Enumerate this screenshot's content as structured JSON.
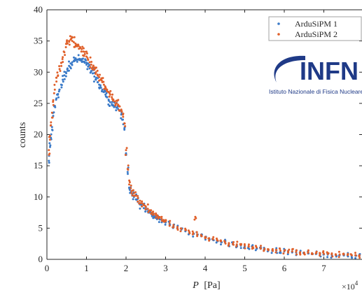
{
  "chart_data": {
    "type": "scatter",
    "title": "",
    "xlabel_italic": "P",
    "xlabel_unit": "[Pa]",
    "ylabel": "counts",
    "x_multiplier": "×10",
    "x_multiplier_exp": "4",
    "xlim": [
      0,
      8
    ],
    "ylim": [
      0,
      40
    ],
    "x_ticks": [
      "0",
      "1",
      "2",
      "3",
      "4",
      "5",
      "6",
      "7"
    ],
    "y_ticks": [
      "0",
      "5",
      "10",
      "15",
      "20",
      "25",
      "30",
      "35",
      "40"
    ],
    "legend_position": "top-right",
    "grid": false,
    "series": [
      {
        "name": "ArduSiPM 1",
        "color": "#3a7ac8",
        "points": [
          [
            0.05,
            15.8
          ],
          [
            0.08,
            18.0
          ],
          [
            0.1,
            19.5
          ],
          [
            0.13,
            21.2
          ],
          [
            0.16,
            23.0
          ],
          [
            0.2,
            24.6
          ],
          [
            0.24,
            25.8
          ],
          [
            0.28,
            26.5
          ],
          [
            0.32,
            27.2
          ],
          [
            0.36,
            28.0
          ],
          [
            0.4,
            28.8
          ],
          [
            0.44,
            29.5
          ],
          [
            0.48,
            30.0
          ],
          [
            0.52,
            30.6
          ],
          [
            0.56,
            31.0
          ],
          [
            0.6,
            31.4
          ],
          [
            0.64,
            31.6
          ],
          [
            0.68,
            31.8
          ],
          [
            0.72,
            31.9
          ],
          [
            0.76,
            32.0
          ],
          [
            0.8,
            32.0
          ],
          [
            0.84,
            31.9
          ],
          [
            0.88,
            31.8
          ],
          [
            0.92,
            31.7
          ],
          [
            0.96,
            31.5
          ],
          [
            1.0,
            31.2
          ],
          [
            1.04,
            30.9
          ],
          [
            1.08,
            30.6
          ],
          [
            1.12,
            30.2
          ],
          [
            1.16,
            29.8
          ],
          [
            1.2,
            29.3
          ],
          [
            1.24,
            28.8
          ],
          [
            1.28,
            28.4
          ],
          [
            1.32,
            28.0
          ],
          [
            1.36,
            27.6
          ],
          [
            1.4,
            27.2
          ],
          [
            1.44,
            26.8
          ],
          [
            1.48,
            26.4
          ],
          [
            1.52,
            26.0
          ],
          [
            1.56,
            25.6
          ],
          [
            1.6,
            25.2
          ],
          [
            1.64,
            24.9
          ],
          [
            1.68,
            24.7
          ],
          [
            1.72,
            24.5
          ],
          [
            1.76,
            24.3
          ],
          [
            1.8,
            24.1
          ],
          [
            1.84,
            23.8
          ],
          [
            1.88,
            23.2
          ],
          [
            1.92,
            22.4
          ],
          [
            1.96,
            21.0
          ],
          [
            2.0,
            17.0
          ],
          [
            2.04,
            14.0
          ],
          [
            2.08,
            11.5
          ],
          [
            2.12,
            10.8
          ],
          [
            2.16,
            10.4
          ],
          [
            2.2,
            10.0
          ],
          [
            2.25,
            9.6
          ],
          [
            2.3,
            9.2
          ],
          [
            2.35,
            8.8
          ],
          [
            2.4,
            8.5
          ],
          [
            2.45,
            8.2
          ],
          [
            2.5,
            8.0
          ],
          [
            2.55,
            7.7
          ],
          [
            2.6,
            7.5
          ],
          [
            2.65,
            7.2
          ],
          [
            2.7,
            7.0
          ],
          [
            2.75,
            6.8
          ],
          [
            2.8,
            6.6
          ],
          [
            2.85,
            6.4
          ],
          [
            2.9,
            6.3
          ],
          [
            2.95,
            6.1
          ],
          [
            3.0,
            5.9
          ],
          [
            3.1,
            5.6
          ],
          [
            3.2,
            5.3
          ],
          [
            3.3,
            5.0
          ],
          [
            3.4,
            4.8
          ],
          [
            3.5,
            4.5
          ],
          [
            3.6,
            4.3
          ],
          [
            3.7,
            4.1
          ],
          [
            3.8,
            3.9
          ],
          [
            3.9,
            3.7
          ],
          [
            4.0,
            3.5
          ],
          [
            4.1,
            3.3
          ],
          [
            4.2,
            3.1
          ],
          [
            4.3,
            3.0
          ],
          [
            4.4,
            2.8
          ],
          [
            4.5,
            2.7
          ],
          [
            4.6,
            2.5
          ],
          [
            4.7,
            2.4
          ],
          [
            4.8,
            2.3
          ],
          [
            4.9,
            2.2
          ],
          [
            5.0,
            2.1
          ],
          [
            5.1,
            2.0
          ],
          [
            5.2,
            1.9
          ],
          [
            5.3,
            1.8
          ],
          [
            5.4,
            1.7
          ],
          [
            5.5,
            1.6
          ],
          [
            5.6,
            1.5
          ],
          [
            5.7,
            1.45
          ],
          [
            5.8,
            1.4
          ],
          [
            5.9,
            1.3
          ],
          [
            6.0,
            1.25
          ],
          [
            6.1,
            1.2
          ],
          [
            6.2,
            1.15
          ],
          [
            6.3,
            1.1
          ],
          [
            6.4,
            1.05
          ],
          [
            6.5,
            1.0
          ],
          [
            6.6,
            0.95
          ],
          [
            6.7,
            0.9
          ],
          [
            6.8,
            0.85
          ],
          [
            6.9,
            0.8
          ],
          [
            7.0,
            0.78
          ],
          [
            7.1,
            0.75
          ],
          [
            7.2,
            0.72
          ],
          [
            7.3,
            0.7
          ],
          [
            7.4,
            0.68
          ],
          [
            7.5,
            0.65
          ],
          [
            7.6,
            0.62
          ],
          [
            7.7,
            0.6
          ],
          [
            7.8,
            0.58
          ],
          [
            7.9,
            0.56
          ]
        ]
      },
      {
        "name": "ArduSiPM 2",
        "color": "#e0602a",
        "points": [
          [
            0.05,
            17.5
          ],
          [
            0.08,
            19.8
          ],
          [
            0.1,
            21.5
          ],
          [
            0.13,
            23.5
          ],
          [
            0.16,
            25.5
          ],
          [
            0.2,
            27.2
          ],
          [
            0.24,
            28.5
          ],
          [
            0.28,
            29.5
          ],
          [
            0.32,
            30.5
          ],
          [
            0.36,
            31.5
          ],
          [
            0.4,
            32.4
          ],
          [
            0.44,
            33.2
          ],
          [
            0.48,
            34.0
          ],
          [
            0.52,
            34.6
          ],
          [
            0.56,
            35.0
          ],
          [
            0.6,
            35.2
          ],
          [
            0.64,
            35.0
          ],
          [
            0.68,
            34.8
          ],
          [
            0.72,
            34.6
          ],
          [
            0.76,
            34.4
          ],
          [
            0.8,
            34.2
          ],
          [
            0.84,
            34.0
          ],
          [
            0.88,
            33.7
          ],
          [
            0.92,
            33.3
          ],
          [
            0.96,
            32.9
          ],
          [
            1.0,
            32.5
          ],
          [
            1.04,
            32.0
          ],
          [
            1.08,
            31.6
          ],
          [
            1.12,
            31.2
          ],
          [
            1.16,
            30.8
          ],
          [
            1.2,
            30.4
          ],
          [
            1.24,
            30.0
          ],
          [
            1.28,
            29.6
          ],
          [
            1.32,
            29.2
          ],
          [
            1.36,
            28.8
          ],
          [
            1.4,
            28.4
          ],
          [
            1.44,
            28.0
          ],
          [
            1.48,
            27.6
          ],
          [
            1.52,
            27.2
          ],
          [
            1.56,
            26.8
          ],
          [
            1.6,
            26.4
          ],
          [
            1.64,
            26.0
          ],
          [
            1.68,
            25.6
          ],
          [
            1.72,
            25.3
          ],
          [
            1.76,
            25.0
          ],
          [
            1.8,
            24.8
          ],
          [
            1.84,
            24.5
          ],
          [
            1.88,
            24.0
          ],
          [
            1.92,
            23.2
          ],
          [
            1.96,
            21.8
          ],
          [
            2.0,
            17.5
          ],
          [
            2.04,
            14.5
          ],
          [
            2.08,
            12.0
          ],
          [
            2.12,
            11.4
          ],
          [
            2.16,
            11.0
          ],
          [
            2.2,
            10.6
          ],
          [
            2.25,
            10.2
          ],
          [
            2.3,
            9.8
          ],
          [
            2.35,
            9.4
          ],
          [
            2.4,
            9.0
          ],
          [
            2.45,
            8.7
          ],
          [
            2.5,
            8.4
          ],
          [
            2.55,
            8.1
          ],
          [
            2.6,
            7.8
          ],
          [
            2.65,
            7.5
          ],
          [
            2.7,
            7.3
          ],
          [
            2.75,
            7.1
          ],
          [
            2.8,
            6.9
          ],
          [
            2.85,
            6.7
          ],
          [
            2.9,
            6.5
          ],
          [
            2.95,
            6.3
          ],
          [
            3.0,
            6.1
          ],
          [
            3.1,
            5.8
          ],
          [
            3.2,
            5.5
          ],
          [
            3.3,
            5.2
          ],
          [
            3.4,
            4.9
          ],
          [
            3.5,
            4.7
          ],
          [
            3.6,
            4.4
          ],
          [
            3.7,
            4.2
          ],
          [
            3.75,
            6.8
          ],
          [
            3.8,
            4.0
          ],
          [
            3.9,
            3.8
          ],
          [
            4.0,
            3.6
          ],
          [
            4.1,
            3.4
          ],
          [
            4.2,
            3.2
          ],
          [
            4.3,
            3.1
          ],
          [
            4.4,
            2.9
          ],
          [
            4.5,
            2.8
          ],
          [
            4.6,
            2.6
          ],
          [
            4.7,
            2.5
          ],
          [
            4.8,
            2.4
          ],
          [
            4.9,
            2.3
          ],
          [
            5.0,
            2.2
          ],
          [
            5.1,
            2.1
          ],
          [
            5.2,
            2.0
          ],
          [
            5.3,
            1.9
          ],
          [
            5.4,
            1.8
          ],
          [
            5.5,
            1.7
          ],
          [
            5.6,
            1.6
          ],
          [
            5.7,
            1.55
          ],
          [
            5.8,
            1.5
          ],
          [
            5.9,
            1.4
          ],
          [
            6.0,
            1.35
          ],
          [
            6.1,
            1.3
          ],
          [
            6.2,
            1.25
          ],
          [
            6.3,
            1.2
          ],
          [
            6.4,
            1.15
          ],
          [
            6.5,
            1.1
          ],
          [
            6.6,
            1.05
          ],
          [
            6.7,
            1.0
          ],
          [
            6.8,
            0.95
          ],
          [
            6.9,
            0.9
          ],
          [
            7.0,
            0.88
          ],
          [
            7.1,
            0.85
          ],
          [
            7.2,
            0.82
          ],
          [
            7.3,
            0.8
          ],
          [
            7.4,
            0.78
          ],
          [
            7.5,
            0.75
          ],
          [
            7.6,
            0.72
          ],
          [
            7.7,
            0.7
          ],
          [
            7.8,
            0.68
          ],
          [
            7.9,
            0.66
          ]
        ]
      }
    ]
  },
  "logo": {
    "word": "INFN",
    "subtitle": "Istituto Nazionale di Fisica Nucleare"
  }
}
